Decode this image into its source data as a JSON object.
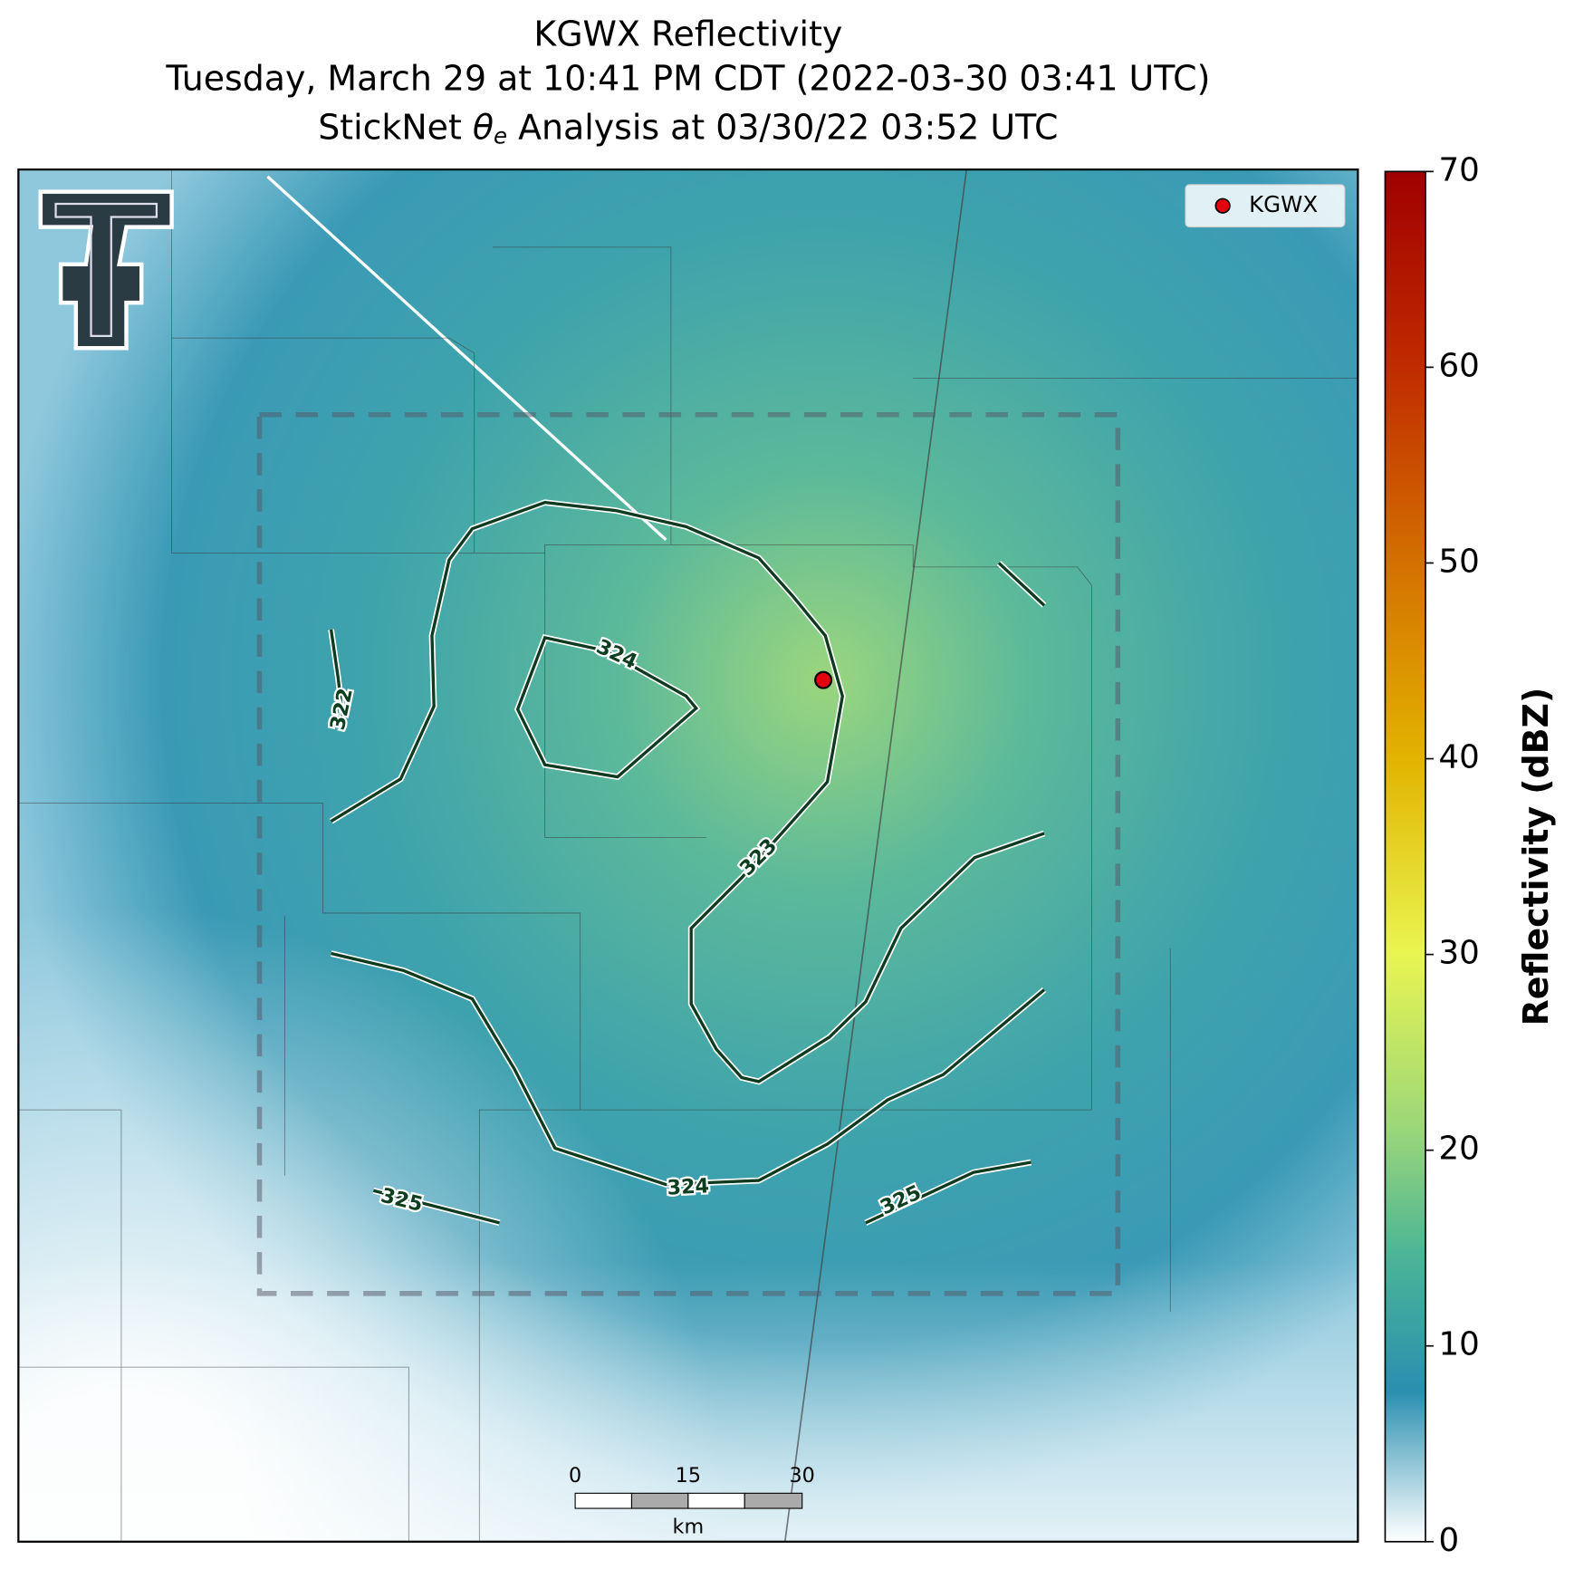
{
  "title": [
    "KGWX Reflectivity",
    "Tuesday, March 29 at 10:41 PM CDT (2022-03-30 03:41 UTC)"
  ],
  "analysis_title": {
    "prefix": "StickNet",
    "symbol": "θ",
    "subscript": "e",
    "suffix": "Analysis at 03/30/22 03:52 UTC"
  },
  "legend": "KGWX",
  "contour_labels": [
    322,
    323,
    324,
    324,
    325,
    325
  ],
  "scale_bar": {
    "ticks": [
      0,
      15,
      30
    ],
    "unit": "km"
  },
  "colorbar": {
    "label": "Reflectivity (dBZ)",
    "lim": [
      0,
      70
    ],
    "ticks": [
      0,
      10,
      20,
      30,
      40,
      50,
      60,
      70
    ]
  }
}
